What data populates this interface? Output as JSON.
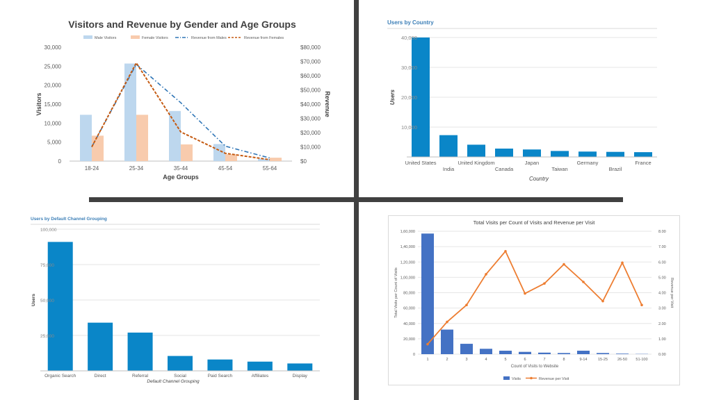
{
  "chart_data": [
    {
      "id": "gender_age",
      "type": "bar",
      "title": "Visitors and Revenue by Gender and Age Groups",
      "categories": [
        "18-24",
        "25-34",
        "35-44",
        "45-54",
        "55-64"
      ],
      "xlabel": "Age Groups",
      "ylabel": "Visitors",
      "y2label": "Revenue",
      "ylim": [
        0,
        30000
      ],
      "y2lim": [
        0,
        80000
      ],
      "yticks": [
        "0",
        "5,000",
        "10,000",
        "15,000",
        "20,000",
        "25,000",
        "30,000"
      ],
      "y2ticks": [
        "$0",
        "$10,000",
        "$20,000",
        "$30,000",
        "$40,000",
        "$50,000",
        "$60,000",
        "$70,000",
        "$80,000"
      ],
      "legend": [
        "Male Visitors",
        "Female Visitors",
        "Revenue from Males",
        "Revenue from Females"
      ],
      "series": [
        {
          "name": "Male Visitors",
          "values": [
            12200,
            25700,
            13200,
            4500,
            600
          ],
          "color": "#bdd7ee"
        },
        {
          "name": "Female Visitors",
          "values": [
            6700,
            12200,
            4400,
            1800,
            900
          ],
          "color": "#f8cbad"
        },
        {
          "name": "Revenue from Males",
          "values": [
            10000,
            68000,
            41000,
            10500,
            2200
          ],
          "color": "#2e75b6",
          "axis": "right"
        },
        {
          "name": "Revenue from Females",
          "values": [
            10000,
            69000,
            20500,
            5500,
            1000
          ],
          "color": "#c55a11",
          "axis": "right"
        }
      ]
    },
    {
      "id": "country",
      "type": "bar",
      "title": "Users by Country",
      "categories": [
        "United States",
        "India",
        "United Kingdom",
        "Canada",
        "Japan",
        "Taiwan",
        "Germany",
        "Brazil",
        "France"
      ],
      "values": [
        40000,
        7300,
        4100,
        2800,
        2500,
        2000,
        1800,
        1700,
        1600
      ],
      "xlabel": "Country",
      "ylabel": "Users",
      "ylim": [
        0,
        40000
      ],
      "yticks": [
        "10,000",
        "20,000",
        "30,000",
        "40,000"
      ],
      "color": "#0a86c8"
    },
    {
      "id": "channel",
      "type": "bar",
      "title": "Users by Default Channel Grouping",
      "categories": [
        "Organic Search",
        "Direct",
        "Referral",
        "Social",
        "Paid Search",
        "Affiliates",
        "Display"
      ],
      "values": [
        91000,
        34000,
        27000,
        10500,
        8000,
        6500,
        5200
      ],
      "xlabel": "Default Channel Grouping",
      "ylabel": "Users",
      "ylim": [
        0,
        100000
      ],
      "yticks": [
        "25,000",
        "50,000",
        "75,000",
        "100,000"
      ],
      "color": "#0a86c8"
    },
    {
      "id": "visits",
      "type": "bar",
      "title": "Total Visits per Count of Visits and Revenue per Visit",
      "categories": [
        "1",
        "2",
        "3",
        "4",
        "5",
        "6",
        "7",
        "8",
        "9-14",
        "15-25",
        "26-50",
        "51-100"
      ],
      "xlabel": "Count of Visits to Website",
      "ylabel": "Total Visits per Count of Visits",
      "y2label": "Revenue per Visit",
      "ylim": [
        0,
        160000
      ],
      "y2lim": [
        0,
        8
      ],
      "yticks": [
        "0",
        "20,000",
        "40,000",
        "60,000",
        "80,000",
        "1,00,000",
        "1,20,000",
        "1,40,000",
        "1,60,000"
      ],
      "y2ticks": [
        "0.00",
        "1.00",
        "2.00",
        "3.00",
        "4.00",
        "5.00",
        "6.00",
        "7.00",
        "8.00"
      ],
      "legend": [
        "Visits",
        "Revenue per Visit"
      ],
      "series": [
        {
          "name": "Visits",
          "values": [
            157000,
            32000,
            13500,
            7000,
            4500,
            3000,
            2000,
            1500,
            4500,
            1500,
            700,
            300
          ],
          "color": "#4472c4"
        },
        {
          "name": "Revenue per Visit",
          "values": [
            0.65,
            2.1,
            3.2,
            5.2,
            6.7,
            3.95,
            4.6,
            5.85,
            4.7,
            3.45,
            5.95,
            3.2
          ],
          "color": "#ed7d31",
          "axis": "right"
        }
      ]
    }
  ]
}
